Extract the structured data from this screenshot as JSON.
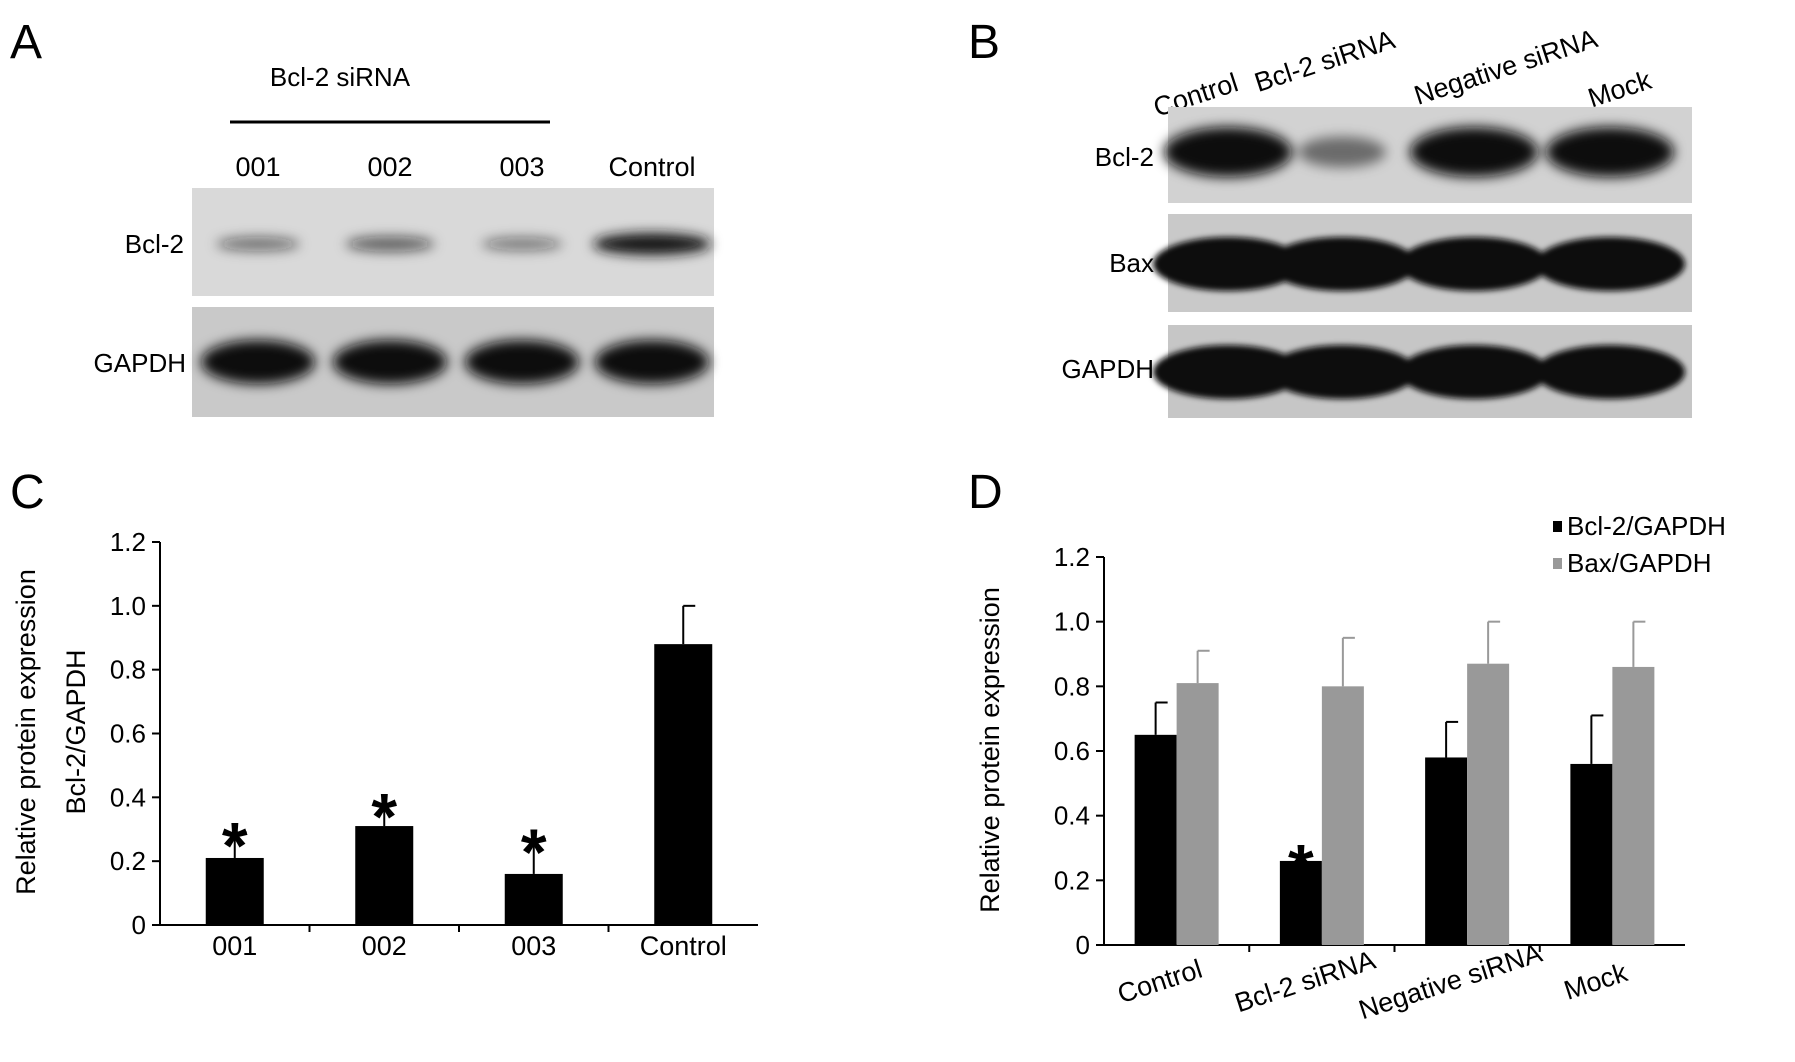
{
  "panels": {
    "A": {
      "letter": "A",
      "group_label": "Bcl-2 siRNA",
      "lanes": [
        "001",
        "002",
        "003",
        "Control"
      ],
      "rows": [
        "Bcl-2",
        "GAPDH"
      ],
      "band_intensity": {
        "Bcl-2": [
          0.35,
          0.45,
          0.3,
          1.0
        ],
        "GAPDH": [
          1.0,
          1.0,
          1.0,
          1.0
        ]
      }
    },
    "B": {
      "letter": "B",
      "lanes": [
        "Control",
        "Bcl-2 siRNA",
        "Negative siRNA",
        "Mock"
      ],
      "rows": [
        "Bcl-2",
        "Bax",
        "GAPDH"
      ],
      "band_intensity": {
        "Bcl-2": [
          1.0,
          0.3,
          1.0,
          1.0
        ],
        "Bax": [
          1.0,
          1.0,
          1.0,
          1.0
        ],
        "GAPDH": [
          1.0,
          1.0,
          1.0,
          1.0
        ]
      }
    },
    "C": {
      "letter": "C"
    },
    "D": {
      "letter": "D"
    }
  },
  "chart_data": [
    {
      "panel": "C",
      "type": "bar",
      "categories": [
        "001",
        "002",
        "003",
        "Control"
      ],
      "series": [
        {
          "values": [
            0.21,
            0.31,
            0.16,
            0.88
          ],
          "errors": [
            0.08,
            0.07,
            0.11,
            0.12
          ],
          "color": "#000000"
        }
      ],
      "significance": [
        "*",
        "*",
        "*",
        ""
      ],
      "ylabel": [
        "Relative protein expression",
        "Bcl-2/GAPDH"
      ],
      "xlabel": "",
      "ylim": [
        0,
        1.2
      ],
      "yticks": [
        "0",
        "0.2",
        "0.4",
        "0.6",
        "0.8",
        "1.0",
        "1.2"
      ],
      "grid": false
    },
    {
      "panel": "D",
      "type": "bar",
      "categories": [
        "Control",
        "Bcl-2 siRNA",
        "Negative siRNA",
        "Mock"
      ],
      "series": [
        {
          "name": "Bcl-2/GAPDH",
          "values": [
            0.65,
            0.26,
            0.58,
            0.56
          ],
          "errors": [
            0.1,
            0.02,
            0.11,
            0.15
          ],
          "color": "#000000"
        },
        {
          "name": "Bax/GAPDH",
          "values": [
            0.81,
            0.8,
            0.87,
            0.86
          ],
          "errors": [
            0.1,
            0.15,
            0.13,
            0.14
          ],
          "color": "#999999"
        }
      ],
      "significance": [
        "",
        "*",
        "",
        ""
      ],
      "ylabel": "Relative protein expression",
      "xlabel": "",
      "ylim": [
        0,
        1.2
      ],
      "yticks": [
        "0",
        "0.2",
        "0.4",
        "0.6",
        "0.8",
        "1.0",
        "1.2"
      ],
      "legend_position": "top-right",
      "grid": false
    }
  ]
}
